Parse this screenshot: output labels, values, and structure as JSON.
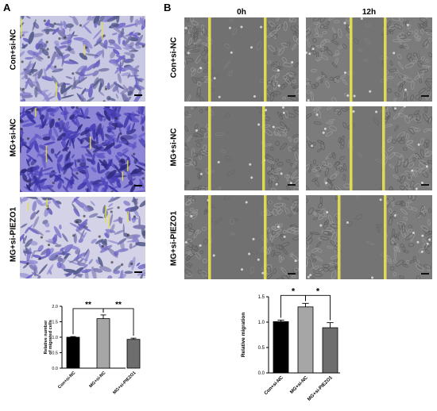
{
  "panels": {
    "a": {
      "letter": "A"
    },
    "b": {
      "letter": "B"
    }
  },
  "transwell": {
    "rows": [
      "Con+si-NC",
      "MG+si-NC",
      "MG+si-PIEZO1"
    ]
  },
  "wound": {
    "columns": [
      "0h",
      "12h"
    ],
    "rows": [
      "Con+si-NC",
      "MG+si-NC",
      "MG+si-PIEZO1"
    ]
  },
  "colors": {
    "stain_light": "#c9c8e3",
    "stain_dark": "#5a4fc0",
    "phase_bg": "#7a7a7a",
    "scratch_line": "#e8e85a",
    "bar_black": "#000000",
    "bar_light_gray": "#a6a6a6",
    "bar_dark_gray": "#6e6e6e"
  },
  "chart_data": [
    {
      "type": "bar",
      "categories": [
        "Con+si-NC",
        "MG+si-NC",
        "MG+si-PIEZO1"
      ],
      "values": [
        1.0,
        1.6,
        0.93
      ],
      "errors": [
        0.02,
        0.12,
        0.04
      ],
      "ylabel": "Relative number\nof migrated cells",
      "ylim": [
        0,
        2.0
      ],
      "yticks": [
        "0.0",
        "0.5",
        "1.0",
        "1.5",
        "2.0"
      ],
      "significance": [
        "**",
        "**"
      ],
      "colors": [
        "#000000",
        "#a6a6a6",
        "#6e6e6e"
      ]
    },
    {
      "type": "bar",
      "categories": [
        "Con+si-NC",
        "MG+si-NC",
        "MG+si-PIEZO1"
      ],
      "values": [
        1.01,
        1.3,
        0.89
      ],
      "errors": [
        0.03,
        0.07,
        0.1
      ],
      "ylabel": "Relative migration",
      "ylim": [
        0,
        1.5
      ],
      "yticks": [
        "0.0",
        "0.5",
        "1.0",
        "1.5"
      ],
      "significance": [
        "*",
        "*"
      ],
      "colors": [
        "#000000",
        "#a6a6a6",
        "#6e6e6e"
      ]
    }
  ]
}
